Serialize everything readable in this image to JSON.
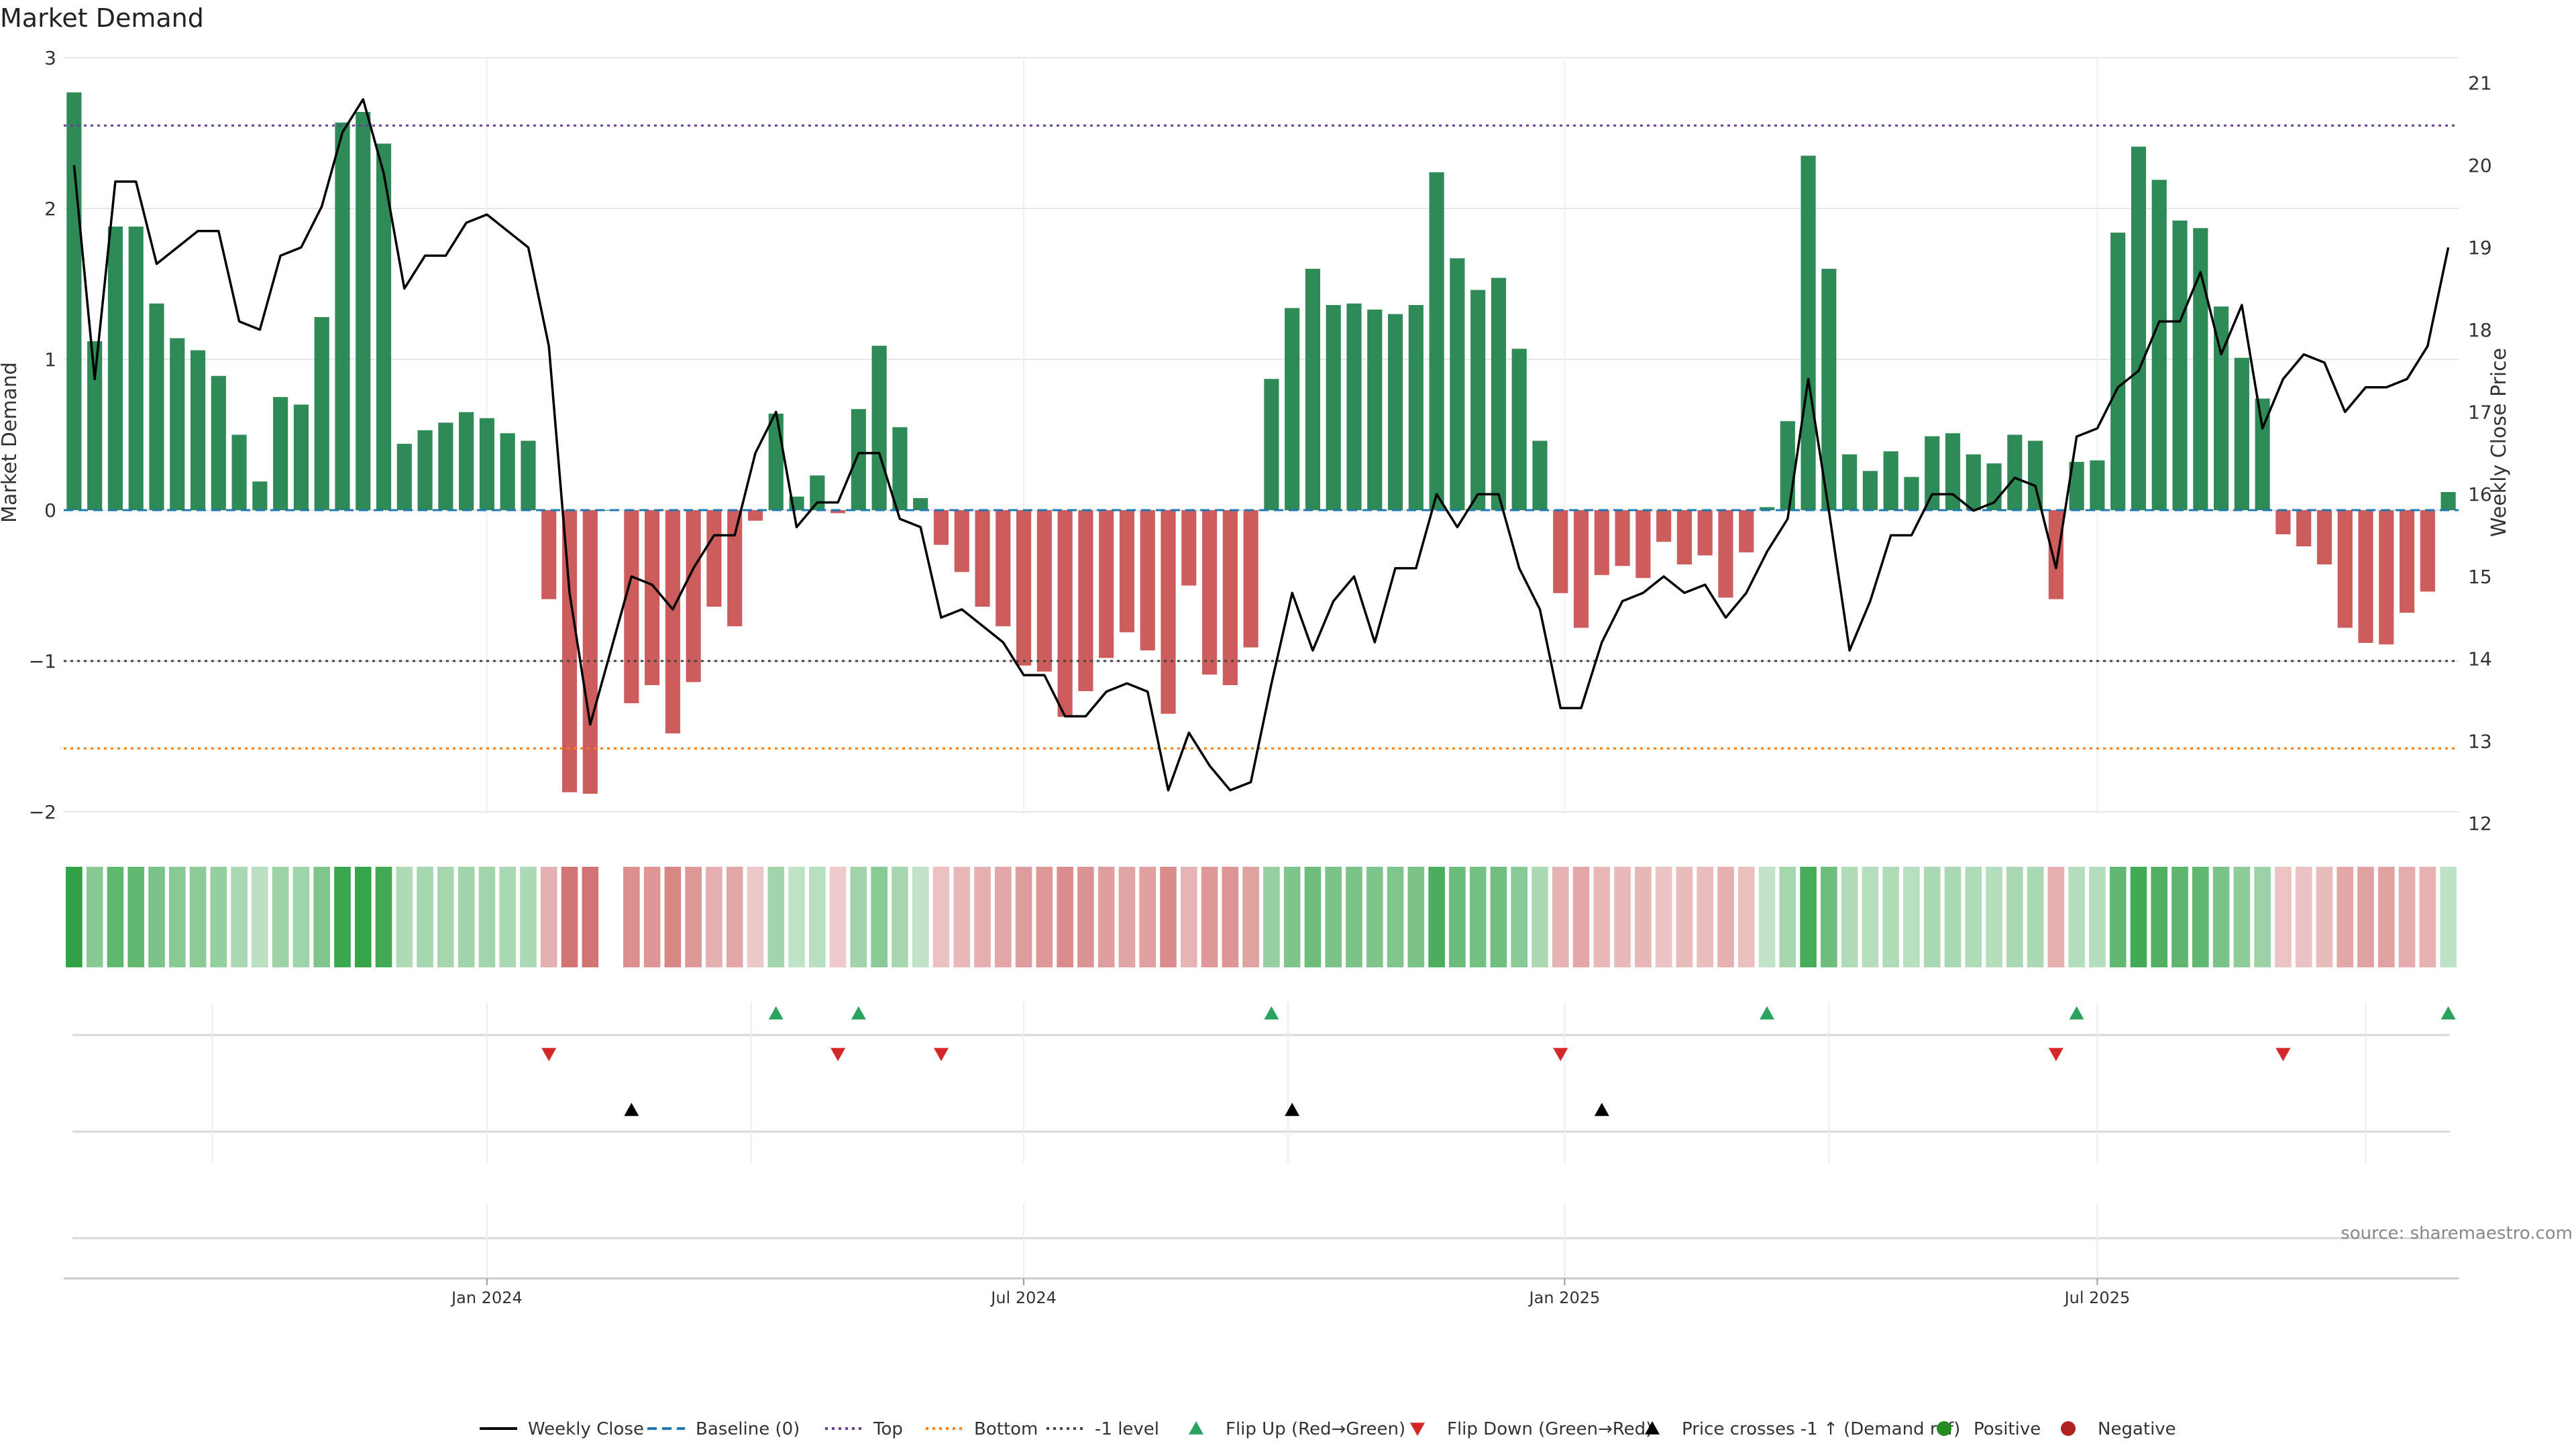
{
  "chart_data": {
    "type": "bar",
    "title": "Market Demand",
    "ylabel_left": "Market Demand",
    "ylabel_right": "Weekly Close Price",
    "ylim_left": [
      -2.2,
      3.0
    ],
    "yticks_left": [
      -2,
      -1,
      0,
      1,
      2,
      3
    ],
    "ytick_labels_left": [
      "−2",
      "−1",
      "0",
      "1",
      "2",
      "3"
    ],
    "ylim_right": [
      12,
      21
    ],
    "yticks_right": [
      12,
      13,
      14,
      15,
      16,
      17,
      18,
      19,
      20,
      21
    ],
    "ytick_labels_right": [
      "12",
      "13",
      "14",
      "15",
      "16",
      "17",
      "18",
      "19",
      "20",
      "21"
    ],
    "x_tick_labels": [
      "Jan 2024",
      "Jul 2024",
      "Jan 2025",
      "Jul 2025"
    ],
    "x_tick_weeks": [
      20.5,
      46.5,
      72.7,
      98.5
    ],
    "minor_grid_weeks": [
      7.2,
      33.3,
      59.3,
      85.5,
      111.5
    ],
    "levels": {
      "top": 2.55,
      "bottom": -1.58,
      "minus_one": -1.0
    },
    "demand": [
      2.77,
      1.12,
      1.88,
      1.88,
      1.37,
      1.14,
      1.06,
      0.89,
      0.5,
      0.19,
      0.75,
      0.7,
      1.28,
      2.57,
      2.64,
      2.43,
      0.44,
      0.53,
      0.58,
      0.65,
      0.61,
      0.51,
      0.46,
      -0.59,
      -1.87,
      -1.88,
      0.0,
      -1.28,
      -1.16,
      -1.48,
      -1.14,
      -0.64,
      -0.77,
      -0.07,
      0.64,
      0.09,
      0.23,
      -0.02,
      0.67,
      1.09,
      0.55,
      0.08,
      -0.23,
      -0.41,
      -0.64,
      -0.77,
      -1.03,
      -1.07,
      -1.37,
      -1.2,
      -0.98,
      -0.81,
      -0.93,
      -1.35,
      -0.5,
      -1.09,
      -1.16,
      -0.91,
      0.87,
      1.34,
      1.6,
      1.36,
      1.37,
      1.33,
      1.3,
      1.36,
      2.24,
      1.67,
      1.46,
      1.54,
      1.07,
      0.46,
      -0.55,
      -0.78,
      -0.43,
      -0.37,
      -0.45,
      -0.21,
      -0.36,
      -0.3,
      -0.58,
      -0.28,
      0.02,
      0.59,
      2.35,
      1.6,
      0.37,
      0.26,
      0.39,
      0.22,
      0.49,
      0.51,
      0.37,
      0.31,
      0.5,
      0.46,
      -0.59,
      0.32,
      0.33,
      1.84,
      2.41,
      2.19,
      1.92,
      1.87,
      1.35,
      1.01,
      0.74,
      -0.16,
      -0.24,
      -0.36,
      -0.78,
      -0.88,
      -0.89,
      -0.68,
      -0.54,
      0.12
    ],
    "close": [
      20.0,
      17.4,
      19.8,
      19.8,
      18.8,
      19.0,
      19.2,
      19.2,
      18.1,
      18.0,
      18.9,
      19.0,
      19.5,
      20.4,
      20.8,
      19.9,
      18.5,
      18.9,
      18.9,
      19.3,
      19.4,
      19.2,
      19.0,
      17.8,
      14.8,
      13.2,
      14.1,
      15.0,
      14.9,
      14.6,
      15.1,
      15.5,
      15.5,
      16.5,
      17.0,
      15.6,
      15.9,
      15.9,
      16.5,
      16.5,
      15.7,
      15.6,
      14.5,
      14.6,
      14.4,
      14.2,
      13.8,
      13.8,
      13.3,
      13.3,
      13.6,
      13.7,
      13.6,
      12.4,
      13.1,
      12.7,
      12.4,
      12.5,
      13.7,
      14.8,
      14.1,
      14.7,
      15.0,
      14.2,
      15.1,
      15.1,
      16.0,
      15.6,
      16.0,
      16.0,
      15.1,
      14.6,
      13.4,
      13.4,
      14.2,
      14.7,
      14.8,
      15.0,
      14.8,
      14.9,
      14.5,
      14.8,
      15.3,
      15.7,
      17.4,
      15.8,
      14.1,
      14.7,
      15.5,
      15.5,
      16.0,
      16.0,
      15.8,
      15.9,
      16.2,
      16.1,
      15.1,
      16.7,
      16.8,
      17.3,
      17.5,
      18.1,
      18.1,
      18.7,
      17.7,
      18.3,
      16.8,
      17.4,
      17.7,
      17.6,
      17.0,
      17.3,
      17.3,
      17.4,
      17.8,
      19.0
    ],
    "flip_up_weeks": [
      34,
      38,
      58,
      82,
      97,
      115
    ],
    "flip_down_weeks": [
      23,
      37,
      42,
      72,
      96,
      107
    ],
    "price_cross_weeks": [
      27,
      59,
      74
    ],
    "source": "source: sharemaestro.com",
    "legend": [
      {
        "label": "Weekly Close",
        "kind": "line",
        "color": "#000000"
      },
      {
        "label": "Baseline (0)",
        "kind": "dashed",
        "color": "#1f77b4"
      },
      {
        "label": "Top",
        "kind": "dotted",
        "color": "#6a3d9a"
      },
      {
        "label": "Bottom",
        "kind": "dotted",
        "color": "#ff7f0e"
      },
      {
        "label": "-1 level",
        "kind": "dotted",
        "color": "#444444"
      },
      {
        "label": "Flip Up (Red→Green)",
        "kind": "tri-up",
        "color": "#2ca25f"
      },
      {
        "label": "Flip Down (Green→Red)",
        "kind": "tri-down",
        "color": "#d62728"
      },
      {
        "label": "Price crosses -1 ↑ (Demand ref)",
        "kind": "tri-up",
        "color": "#000000"
      },
      {
        "label": "Positive",
        "kind": "dot",
        "color": "#228b22"
      },
      {
        "label": "Negative",
        "kind": "dot",
        "color": "#b22222"
      }
    ],
    "colors": {
      "positive_bar": "#2e8b57",
      "negative_bar": "#cd5c5c",
      "close_line": "#000000",
      "grid": "#e6e6e6"
    }
  }
}
